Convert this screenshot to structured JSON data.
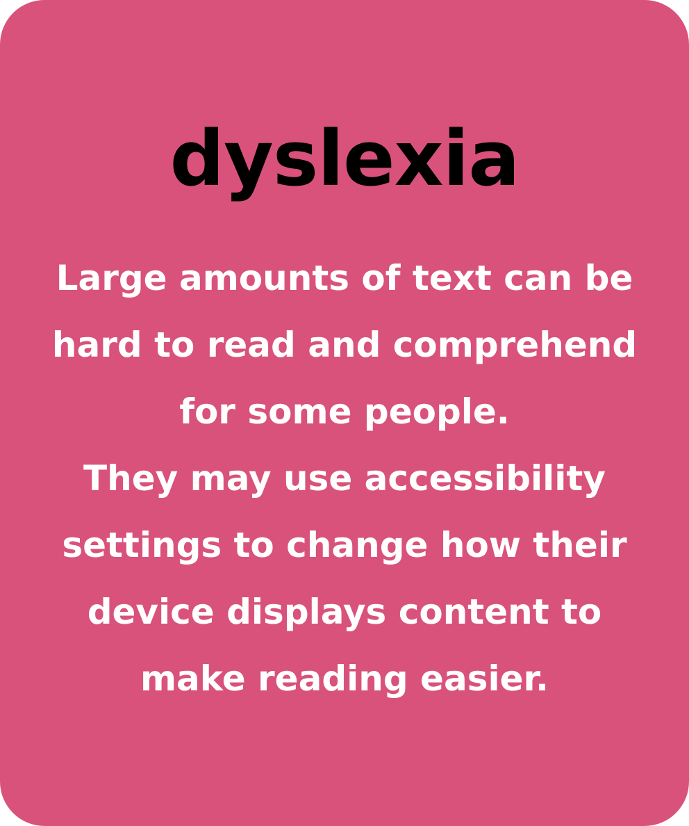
{
  "card": {
    "background_color": "#d9527b",
    "title": "dyslexia",
    "title_color": "#000000",
    "text_color": "#ffffff",
    "lines": [
      "Large amounts of text can be",
      "hard to read and comprehend",
      "for some people.",
      "They may use accessibility",
      "settings to change how their",
      "device displays content to",
      "make reading easier."
    ]
  }
}
